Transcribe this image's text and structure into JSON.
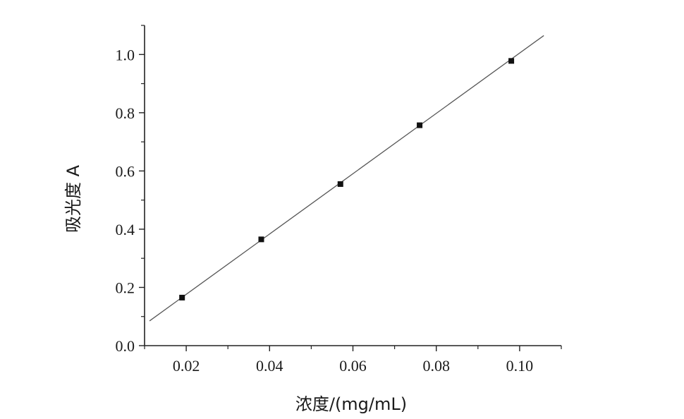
{
  "chart_data": {
    "type": "scatter",
    "title": "",
    "xlabel": "浓度/(mg/mL)",
    "ylabel": "吸光度 A",
    "xlim": [
      0.01,
      0.11
    ],
    "ylim": [
      0.0,
      1.1
    ],
    "x_ticks": [
      "0.02",
      "0.04",
      "0.06",
      "0.08",
      "0.10"
    ],
    "y_ticks": [
      "0.0",
      "0.2",
      "0.4",
      "0.6",
      "0.8",
      "1.0"
    ],
    "grid": false,
    "points": [
      {
        "x": 0.019,
        "y": 0.165
      },
      {
        "x": 0.038,
        "y": 0.365
      },
      {
        "x": 0.057,
        "y": 0.555
      },
      {
        "x": 0.076,
        "y": 0.757
      },
      {
        "x": 0.098,
        "y": 0.978
      }
    ],
    "fit_line": {
      "x": [
        0.0112,
        0.1058
      ],
      "y": [
        0.085,
        1.065
      ]
    },
    "colors": {
      "marker": "#111111",
      "fit_line": "#555555",
      "axis": "#222222"
    }
  }
}
